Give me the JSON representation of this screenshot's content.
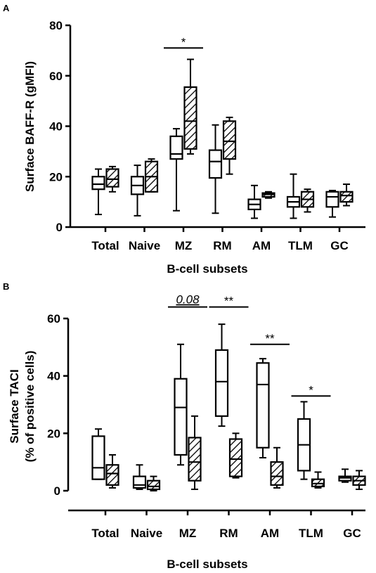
{
  "chart_data": [
    {
      "panel": "A",
      "type": "boxplot",
      "xlabel": "B-cell subsets",
      "ylabel": "Surface BAFF-R (gMFI)",
      "ylim": [
        0,
        80
      ],
      "yticks": [
        0,
        20,
        40,
        60,
        80
      ],
      "categories": [
        "Total",
        "Naive",
        "MZ",
        "RM",
        "AM",
        "TLM",
        "GC"
      ],
      "series": [
        {
          "pattern": "open",
          "boxes": [
            {
              "min": 5,
              "q1": 15,
              "median": 17,
              "q3": 20,
              "max": 23
            },
            {
              "min": 4.5,
              "q1": 13,
              "median": 16.5,
              "q3": 20,
              "max": 24.5
            },
            {
              "min": 6.5,
              "q1": 27,
              "median": 29,
              "q3": 36,
              "max": 39
            },
            {
              "min": 5.5,
              "q1": 19.5,
              "median": 26,
              "q3": 30.5,
              "max": 40.5
            },
            {
              "min": 3.5,
              "q1": 7,
              "median": 9,
              "q3": 11,
              "max": 16.5
            },
            {
              "min": 3.5,
              "q1": 8,
              "median": 10,
              "q3": 12,
              "max": 21
            },
            {
              "min": 4,
              "q1": 8,
              "median": 12,
              "q3": 14,
              "max": 14.5
            }
          ]
        },
        {
          "pattern": "hatched",
          "boxes": [
            {
              "min": 14,
              "q1": 16,
              "median": 19,
              "q3": 23,
              "max": 24
            },
            {
              "min": 14,
              "q1": 14,
              "median": 20,
              "q3": 26,
              "max": 27
            },
            {
              "min": 29,
              "q1": 31,
              "median": 42,
              "q3": 55.5,
              "max": 66.5
            },
            {
              "min": 21,
              "q1": 27,
              "median": 34,
              "q3": 42,
              "max": 43.5
            },
            {
              "min": 11.5,
              "q1": 12,
              "median": 13,
              "q3": 13.5,
              "max": 14
            },
            {
              "min": 6,
              "q1": 8,
              "median": 11,
              "q3": 14,
              "max": 15
            },
            {
              "min": 8.5,
              "q1": 10,
              "median": 12.5,
              "q3": 14,
              "max": 17
            }
          ]
        }
      ],
      "annotations": [
        {
          "label": "*",
          "category": "MZ",
          "y": 71,
          "style": "normal"
        }
      ]
    },
    {
      "panel": "B",
      "type": "boxplot",
      "xlabel": "B-cell subsets",
      "ylabel": "Surface TACI",
      "ylabel2": "(% of positive cells)",
      "ylim": [
        0,
        60
      ],
      "yticks": [
        0,
        20,
        40,
        60
      ],
      "categories": [
        "Total",
        "Naive",
        "MZ",
        "RM",
        "AM",
        "TLM",
        "GC"
      ],
      "series": [
        {
          "pattern": "open",
          "boxes": [
            {
              "min": 4,
              "q1": 4,
              "median": 8,
              "q3": 19,
              "max": 21.5
            },
            {
              "min": 0.5,
              "q1": 1,
              "median": 2,
              "q3": 5,
              "max": 9
            },
            {
              "min": 9,
              "q1": 12.5,
              "median": 29,
              "q3": 39,
              "max": 51
            },
            {
              "min": 22.5,
              "q1": 26,
              "median": 38,
              "q3": 49,
              "max": 58
            },
            {
              "min": 11.5,
              "q1": 15,
              "median": 37,
              "q3": 44.5,
              "max": 46
            },
            {
              "min": 4,
              "q1": 7,
              "median": 16,
              "q3": 25,
              "max": 31
            },
            {
              "min": 3,
              "q1": 3.5,
              "median": 4.5,
              "q3": 5,
              "max": 7.5
            }
          ]
        },
        {
          "pattern": "hatched",
          "boxes": [
            {
              "min": 1,
              "q1": 2,
              "median": 6,
              "q3": 9,
              "max": 12.5
            },
            {
              "min": 0,
              "q1": 0.5,
              "median": 1.5,
              "q3": 3.5,
              "max": 5
            },
            {
              "min": 0.5,
              "q1": 3.5,
              "median": 10,
              "q3": 18.5,
              "max": 26
            },
            {
              "min": 4.5,
              "q1": 5,
              "median": 11,
              "q3": 18,
              "max": 20
            },
            {
              "min": 1,
              "q1": 2,
              "median": 5,
              "q3": 10,
              "max": 15
            },
            {
              "min": 1,
              "q1": 1.5,
              "median": 2.5,
              "q3": 4,
              "max": 6.5
            },
            {
              "min": 0.5,
              "q1": 2,
              "median": 3.5,
              "q3": 5,
              "max": 7
            }
          ]
        }
      ],
      "annotations": [
        {
          "label": "0.08",
          "category": "MZ",
          "y": 64,
          "style": "italic-underline"
        },
        {
          "label": "**",
          "category": "RM",
          "y": 64,
          "style": "normal"
        },
        {
          "label": "**",
          "category": "AM",
          "y": 51,
          "style": "normal"
        },
        {
          "label": "*",
          "category": "TLM",
          "y": 33,
          "style": "normal"
        }
      ]
    }
  ]
}
